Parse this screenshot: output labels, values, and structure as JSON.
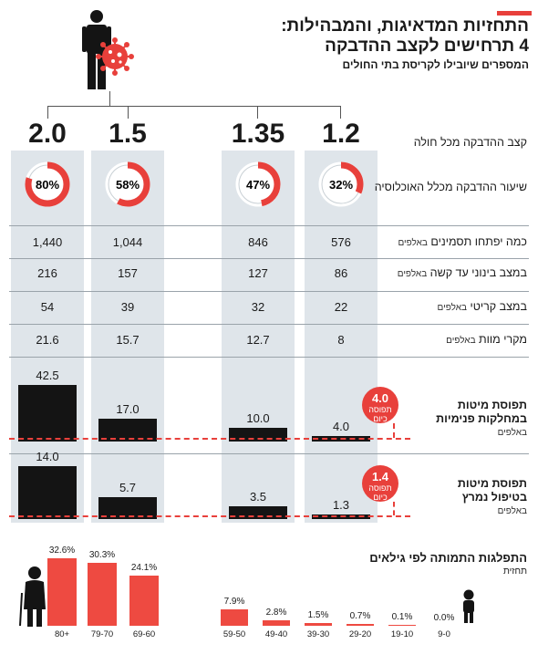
{
  "header": {
    "title_line1": "התחזיות המדאיגות, והמבהילות:",
    "title_line2": "4 תרחישים לקצב ההדבקה",
    "subtitle": "המספרים שיובילו לקריסת בתי החולים"
  },
  "scenarios": [
    {
      "factor": "2.0",
      "pct": "80%",
      "pct_value": 80,
      "infected": "1,440",
      "moderate": "216",
      "critical": "54",
      "deaths": "21.6",
      "internal_bar": "42.5",
      "intensive_bar": "14.0"
    },
    {
      "factor": "1.5",
      "pct": "58%",
      "pct_value": 58,
      "infected": "1,044",
      "moderate": "157",
      "critical": "39",
      "deaths": "15.7",
      "internal_bar": "17.0",
      "intensive_bar": "5.7"
    },
    {
      "factor": "1.35",
      "pct": "47%",
      "pct_value": 47,
      "infected": "846",
      "moderate": "127",
      "critical": "32",
      "deaths": "12.7",
      "internal_bar": "10.0",
      "intensive_bar": "3.5"
    },
    {
      "factor": "1.2",
      "pct": "32%",
      "pct_value": 32,
      "infected": "576",
      "moderate": "86",
      "critical": "22",
      "deaths": "8",
      "internal_bar": "4.0",
      "intensive_bar": "1.3"
    }
  ],
  "rows": {
    "factor_label": "קצב ההדבקה מכל חולה",
    "pct_label": "שיעור ההדבקה מכלל האוכלוסיה",
    "infected_label": "כמה יפתחו תסמינים",
    "moderate_label": "במצב בינוני עד קשה",
    "critical_label": "במצב קריטי",
    "deaths_label": "מקרי מוות",
    "unit_thousands": "באלפים",
    "internal_label_1": "תפוסת מיטות",
    "internal_label_2": "במחלקות פנימיות",
    "intensive_label_1": "תפוסת מיטות",
    "intensive_label_2": "בטיפול נמרץ"
  },
  "capacity": {
    "internal_value": "4.0",
    "intensive_value": "1.4",
    "caption": "תפוסה כיום"
  },
  "age_section": {
    "title": "התפלגות התמותה לפי גילאים",
    "subtitle": "תחזית"
  },
  "chart_data": [
    {
      "type": "bar",
      "title": "תפוסת מיטות במחלקות פנימיות",
      "ylabel": "באלפים",
      "categories": [
        "2.0",
        "1.5",
        "1.35",
        "1.2"
      ],
      "values": [
        42.5,
        17.0,
        10.0,
        4.0
      ],
      "reference_line": 4.0
    },
    {
      "type": "bar",
      "title": "תפוסת מיטות בטיפול נמרץ",
      "ylabel": "באלפים",
      "categories": [
        "2.0",
        "1.5",
        "1.35",
        "1.2"
      ],
      "values": [
        14.0,
        5.7,
        3.5,
        1.3
      ],
      "reference_line": 1.4
    },
    {
      "type": "bar",
      "title": "התפלגות התמותה לפי גילאים",
      "categories": [
        "80+",
        "79-70",
        "69-60",
        "59-50",
        "49-40",
        "39-30",
        "29-20",
        "19-10",
        "9-0"
      ],
      "values": [
        32.6,
        30.3,
        24.1,
        7.9,
        2.8,
        1.5,
        0.7,
        0.1,
        0.0
      ],
      "labels": [
        "32.6%",
        "30.3%",
        "24.1%",
        "7.9%",
        "2.8%",
        "1.5%",
        "0.7%",
        "0.1%",
        "0.0%"
      ]
    }
  ],
  "colors": {
    "accent": "#e8403b",
    "column_bg": "#dfe5ea",
    "bar": "#141414"
  }
}
